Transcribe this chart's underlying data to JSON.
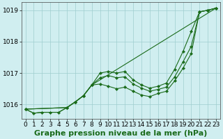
{
  "background_color": "#d0eef0",
  "grid_color": "#9ecece",
  "line_color": "#1a6b1a",
  "marker_color": "#1a6b1a",
  "xlabel": "Graphe pression niveau de la mer (hPa)",
  "xlabel_fontsize": 8,
  "tick_fontsize": 6.5,
  "xlim": [
    -0.5,
    23.5
  ],
  "ylim": [
    1015.55,
    1019.25
  ],
  "yticks": [
    1016,
    1017,
    1018,
    1019
  ],
  "xticks": [
    0,
    1,
    2,
    3,
    4,
    5,
    6,
    7,
    8,
    9,
    10,
    11,
    12,
    13,
    14,
    15,
    16,
    17,
    18,
    19,
    20,
    21,
    22,
    23
  ],
  "lines": [
    {
      "x": [
        0,
        1,
        2,
        3,
        4,
        5,
        6,
        7,
        8,
        9,
        10,
        11,
        12,
        13,
        14,
        15,
        16,
        17,
        18,
        19,
        20,
        21,
        22,
        23
      ],
      "y": [
        1015.85,
        1015.72,
        1015.75,
        1015.75,
        1015.75,
        1015.9,
        1016.08,
        1016.28,
        1016.62,
        1017.0,
        1017.05,
        1017.0,
        1017.05,
        1016.78,
        1016.62,
        1016.52,
        1016.58,
        1016.68,
        1017.12,
        1017.68,
        1018.32,
        1018.95,
        1019.0,
        1019.07
      ],
      "has_markers": true
    },
    {
      "x": [
        0,
        1,
        2,
        3,
        4,
        5,
        6,
        7,
        8,
        23
      ],
      "y": [
        1015.85,
        1015.72,
        1015.75,
        1015.75,
        1015.75,
        1015.9,
        1016.08,
        1016.28,
        1016.62,
        1019.07
      ],
      "has_markers": false
    },
    {
      "x": [
        0,
        5,
        6,
        7,
        8,
        9,
        10,
        11,
        12,
        13,
        14,
        15,
        16,
        17,
        18,
        19,
        20,
        21,
        22,
        23
      ],
      "y": [
        1015.85,
        1015.9,
        1016.08,
        1016.28,
        1016.62,
        1016.65,
        1016.58,
        1016.5,
        1016.55,
        1016.42,
        1016.3,
        1016.25,
        1016.35,
        1016.42,
        1016.75,
        1017.15,
        1017.62,
        1018.95,
        1019.0,
        1019.07
      ],
      "has_markers": true
    },
    {
      "x": [
        0,
        5,
        6,
        7,
        8,
        9,
        10,
        11,
        12,
        13,
        14,
        15,
        16,
        17,
        18,
        19,
        20,
        21,
        22,
        23
      ],
      "y": [
        1015.85,
        1015.9,
        1016.08,
        1016.28,
        1016.62,
        1016.85,
        1016.92,
        1016.85,
        1016.88,
        1016.65,
        1016.52,
        1016.42,
        1016.48,
        1016.55,
        1016.88,
        1017.35,
        1017.85,
        1018.95,
        1019.0,
        1019.07
      ],
      "has_markers": true
    }
  ]
}
